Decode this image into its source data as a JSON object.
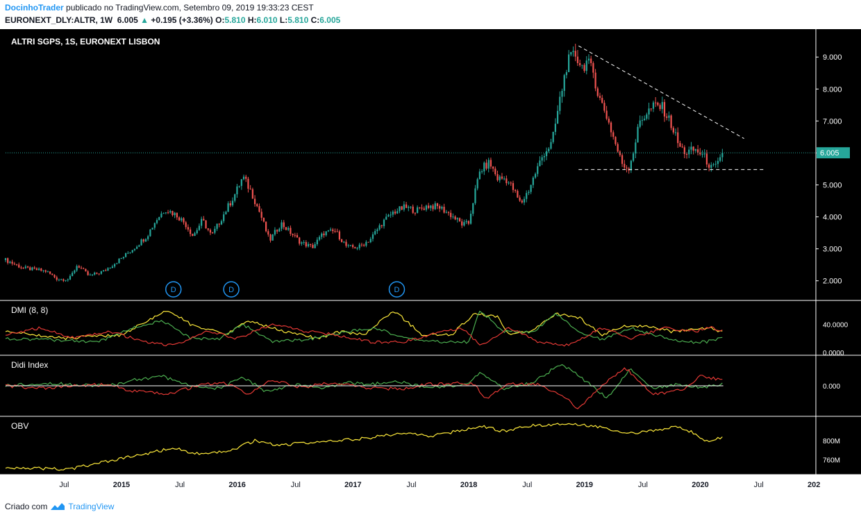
{
  "header": {
    "author": "DocinhoTrader",
    "published": "publicado no TradingView.com, Setembro 09, 2019 19:33:23 CEST",
    "symbol": "EURONEXT_DLY:ALTR, 1W",
    "last": "6.005",
    "change": "+0.195 (+3.36%)",
    "open_label": "O:",
    "open": "5.810",
    "high_label": "H:",
    "high": "6.010",
    "low_label": "L:",
    "low": "5.810",
    "close_label": "C:",
    "close": "6.005"
  },
  "footer": {
    "created_with": "Criado com",
    "brand": "TradingView"
  },
  "colors": {
    "up": "#26a69a",
    "down": "#ef5350",
    "yellow": "#ffeb3b",
    "green": "#4caf50",
    "red": "#e53935",
    "background": "#000000"
  },
  "chart_data": [
    {
      "type": "candlestick",
      "title": "ALTRI SGPS, 1S, EURONEXT LISBON",
      "x_tick_labels": [
        "Jul",
        "2015",
        "Jul",
        "2016",
        "Jul",
        "2017",
        "Jul",
        "2018",
        "Jul",
        "2019",
        "Jul",
        "2020",
        "Jul",
        "202"
      ],
      "y_ticks": [
        2.0,
        3.0,
        4.0,
        5.0,
        6.0,
        7.0,
        8.0,
        9.0
      ],
      "y_tick_labels": [
        "2.000",
        "3.000",
        "4.000",
        "5.000",
        "6.000",
        "7.000",
        "8.000",
        "9.000"
      ],
      "ylim": [
        1.45,
        9.7
      ],
      "last_price_label": "6.005",
      "last_price": 6.005,
      "dividend_markers": [
        {
          "label": "D",
          "date": "2015.45"
        },
        {
          "label": "D",
          "date": "2015.95"
        },
        {
          "label": "D",
          "date": "2017.38"
        }
      ],
      "anchors": [
        [
          2014.0,
          2.65
        ],
        [
          2014.15,
          2.4
        ],
        [
          2014.35,
          2.3
        ],
        [
          2014.45,
          2.05
        ],
        [
          2014.55,
          2.05
        ],
        [
          2014.62,
          2.5
        ],
        [
          2014.72,
          2.15
        ],
        [
          2014.85,
          2.3
        ],
        [
          2015.0,
          2.7
        ],
        [
          2015.1,
          3.0
        ],
        [
          2015.22,
          3.4
        ],
        [
          2015.3,
          3.9
        ],
        [
          2015.38,
          4.25
        ],
        [
          2015.48,
          4.05
        ],
        [
          2015.55,
          3.8
        ],
        [
          2015.62,
          3.4
        ],
        [
          2015.7,
          3.9
        ],
        [
          2015.78,
          3.4
        ],
        [
          2015.88,
          4.05
        ],
        [
          2015.98,
          4.7
        ],
        [
          2016.05,
          5.25
        ],
        [
          2016.12,
          4.8
        ],
        [
          2016.2,
          4.1
        ],
        [
          2016.28,
          3.25
        ],
        [
          2016.38,
          3.8
        ],
        [
          2016.45,
          3.55
        ],
        [
          2016.55,
          3.2
        ],
        [
          2016.65,
          3.05
        ],
        [
          2016.75,
          3.5
        ],
        [
          2016.85,
          3.55
        ],
        [
          2016.95,
          3.05
        ],
        [
          2017.05,
          3.05
        ],
        [
          2017.15,
          3.3
        ],
        [
          2017.25,
          3.8
        ],
        [
          2017.35,
          4.15
        ],
        [
          2017.45,
          4.3
        ],
        [
          2017.55,
          4.2
        ],
        [
          2017.65,
          4.35
        ],
        [
          2017.75,
          4.3
        ],
        [
          2017.85,
          4.05
        ],
        [
          2017.95,
          3.75
        ],
        [
          2018.0,
          3.8
        ],
        [
          2018.05,
          4.7
        ],
        [
          2018.1,
          5.45
        ],
        [
          2018.18,
          5.7
        ],
        [
          2018.25,
          5.2
        ],
        [
          2018.32,
          5.2
        ],
        [
          2018.38,
          4.9
        ],
        [
          2018.45,
          4.4
        ],
        [
          2018.52,
          4.85
        ],
        [
          2018.58,
          5.4
        ],
        [
          2018.65,
          6.0
        ],
        [
          2018.72,
          6.3
        ],
        [
          2018.78,
          7.5
        ],
        [
          2018.85,
          8.8
        ],
        [
          2018.92,
          9.1
        ],
        [
          2018.98,
          8.7
        ],
        [
          2019.02,
          8.85
        ],
        [
          2019.08,
          8.5
        ],
        [
          2019.12,
          7.8
        ],
        [
          2019.18,
          7.3
        ],
        [
          2019.25,
          6.5
        ],
        [
          2019.32,
          5.7
        ],
        [
          2019.38,
          5.5
        ],
        [
          2019.42,
          6.0
        ],
        [
          2019.48,
          7.0
        ],
        [
          2019.55,
          7.3
        ],
        [
          2019.62,
          7.5
        ],
        [
          2019.68,
          7.4
        ],
        [
          2019.75,
          6.9
        ],
        [
          2019.82,
          6.2
        ],
        [
          2019.88,
          6.0
        ],
        [
          2019.95,
          6.1
        ],
        [
          2020.0,
          6.0
        ],
        [
          2020.05,
          5.8
        ],
        [
          2020.1,
          5.5
        ],
        [
          2020.15,
          5.6
        ],
        [
          2020.2,
          6.0
        ]
      ],
      "annotations": [
        {
          "type": "trendline",
          "style": "dashed",
          "from": [
            2018.95,
            9.35
          ],
          "to": [
            2020.38,
            6.45
          ]
        },
        {
          "type": "horizontal_line",
          "style": "dashed",
          "from": [
            2018.95,
            5.48
          ],
          "to": [
            2020.55,
            5.48
          ]
        }
      ]
    },
    {
      "type": "line",
      "title": "DMI (8, 8)",
      "y_tick_labels": [
        "40.0000",
        "0.0000"
      ],
      "series": [
        {
          "color": "yellow",
          "anchors": [
            [
              2014.0,
              30
            ],
            [
              2014.5,
              20
            ],
            [
              2015.0,
              25
            ],
            [
              2015.4,
              60
            ],
            [
              2015.6,
              40
            ],
            [
              2015.9,
              25
            ],
            [
              2016.1,
              45
            ],
            [
              2016.4,
              30
            ],
            [
              2016.7,
              20
            ],
            [
              2016.9,
              30
            ],
            [
              2017.1,
              25
            ],
            [
              2017.35,
              60
            ],
            [
              2017.6,
              25
            ],
            [
              2017.85,
              25
            ],
            [
              2018.05,
              55
            ],
            [
              2018.25,
              50
            ],
            [
              2018.35,
              25
            ],
            [
              2018.55,
              30
            ],
            [
              2018.75,
              55
            ],
            [
              2018.95,
              50
            ],
            [
              2019.15,
              25
            ],
            [
              2019.35,
              38
            ],
            [
              2019.55,
              38
            ],
            [
              2019.75,
              30
            ],
            [
              2019.95,
              32
            ],
            [
              2020.1,
              35
            ],
            [
              2020.2,
              28
            ]
          ]
        },
        {
          "color": "green",
          "anchors": [
            [
              2014.0,
              20
            ],
            [
              2014.4,
              18
            ],
            [
              2014.8,
              15
            ],
            [
              2015.1,
              35
            ],
            [
              2015.35,
              45
            ],
            [
              2015.6,
              20
            ],
            [
              2015.85,
              20
            ],
            [
              2016.05,
              40
            ],
            [
              2016.3,
              15
            ],
            [
              2016.6,
              18
            ],
            [
              2016.9,
              28
            ],
            [
              2017.2,
              35
            ],
            [
              2017.45,
              20
            ],
            [
              2017.75,
              15
            ],
            [
              2018.0,
              15
            ],
            [
              2018.1,
              60
            ],
            [
              2018.3,
              30
            ],
            [
              2018.55,
              28
            ],
            [
              2018.75,
              55
            ],
            [
              2018.95,
              30
            ],
            [
              2019.15,
              18
            ],
            [
              2019.4,
              35
            ],
            [
              2019.6,
              25
            ],
            [
              2019.85,
              15
            ],
            [
              2020.05,
              15
            ],
            [
              2020.2,
              22
            ]
          ]
        },
        {
          "color": "red",
          "anchors": [
            [
              2014.0,
              25
            ],
            [
              2014.3,
              35
            ],
            [
              2014.6,
              20
            ],
            [
              2014.9,
              30
            ],
            [
              2015.2,
              15
            ],
            [
              2015.45,
              10
            ],
            [
              2015.75,
              30
            ],
            [
              2016.0,
              20
            ],
            [
              2016.3,
              40
            ],
            [
              2016.6,
              30
            ],
            [
              2016.85,
              25
            ],
            [
              2017.15,
              15
            ],
            [
              2017.45,
              15
            ],
            [
              2017.75,
              30
            ],
            [
              2017.95,
              35
            ],
            [
              2018.1,
              10
            ],
            [
              2018.35,
              35
            ],
            [
              2018.6,
              15
            ],
            [
              2018.85,
              10
            ],
            [
              2019.15,
              35
            ],
            [
              2019.4,
              20
            ],
            [
              2019.7,
              35
            ],
            [
              2019.95,
              30
            ],
            [
              2020.1,
              35
            ],
            [
              2020.2,
              30
            ]
          ]
        }
      ]
    },
    {
      "type": "line",
      "title": "Didi Index",
      "y_tick_labels": [
        "0.000"
      ],
      "series": [
        {
          "color": "green",
          "anchors": [
            [
              2014.0,
              0.0
            ],
            [
              2014.3,
              0.1
            ],
            [
              2014.6,
              0.05
            ],
            [
              2014.9,
              0.0
            ],
            [
              2015.1,
              0.2
            ],
            [
              2015.35,
              0.35
            ],
            [
              2015.6,
              0.0
            ],
            [
              2015.85,
              -0.1
            ],
            [
              2016.05,
              0.3
            ],
            [
              2016.25,
              -0.2
            ],
            [
              2016.5,
              0.05
            ],
            [
              2016.75,
              -0.1
            ],
            [
              2016.95,
              0.1
            ],
            [
              2017.15,
              0.05
            ],
            [
              2017.4,
              0.15
            ],
            [
              2017.6,
              -0.05
            ],
            [
              2017.85,
              0.0
            ],
            [
              2018.0,
              0.05
            ],
            [
              2018.1,
              0.5
            ],
            [
              2018.3,
              -0.1
            ],
            [
              2018.55,
              0.1
            ],
            [
              2018.8,
              0.8
            ],
            [
              2019.0,
              0.2
            ],
            [
              2019.2,
              -0.45
            ],
            [
              2019.4,
              0.6
            ],
            [
              2019.6,
              -0.1
            ],
            [
              2019.8,
              0.05
            ],
            [
              2020.0,
              -0.05
            ],
            [
              2020.2,
              0.05
            ]
          ]
        },
        {
          "color": "red",
          "anchors": [
            [
              2014.0,
              0.0
            ],
            [
              2014.3,
              -0.1
            ],
            [
              2014.6,
              0.0
            ],
            [
              2014.9,
              0.05
            ],
            [
              2015.1,
              -0.2
            ],
            [
              2015.4,
              -0.3
            ],
            [
              2015.7,
              0.05
            ],
            [
              2015.9,
              0.1
            ],
            [
              2016.1,
              -0.3
            ],
            [
              2016.3,
              0.2
            ],
            [
              2016.55,
              -0.05
            ],
            [
              2016.8,
              0.1
            ],
            [
              2017.0,
              0.0
            ],
            [
              2017.2,
              -0.1
            ],
            [
              2017.45,
              -0.1
            ],
            [
              2017.65,
              0.05
            ],
            [
              2017.9,
              0.1
            ],
            [
              2018.05,
              0.05
            ],
            [
              2018.15,
              -0.45
            ],
            [
              2018.35,
              0.1
            ],
            [
              2018.6,
              0.05
            ],
            [
              2018.8,
              -0.3
            ],
            [
              2018.95,
              -0.85
            ],
            [
              2019.15,
              0.0
            ],
            [
              2019.35,
              0.65
            ],
            [
              2019.6,
              -0.3
            ],
            [
              2019.85,
              -0.15
            ],
            [
              2020.0,
              0.35
            ],
            [
              2020.2,
              0.2
            ]
          ]
        }
      ],
      "zero_line": true
    },
    {
      "type": "line",
      "title": "OBV",
      "y_tick_labels": [
        "800M",
        "760M"
      ],
      "series": [
        {
          "color": "yellow",
          "anchors": [
            [
              2014.0,
              745
            ],
            [
              2014.3,
              742
            ],
            [
              2014.55,
              740
            ],
            [
              2014.7,
              748
            ],
            [
              2014.95,
              760
            ],
            [
              2015.2,
              772
            ],
            [
              2015.45,
              785
            ],
            [
              2015.7,
              770
            ],
            [
              2015.95,
              780
            ],
            [
              2016.15,
              800
            ],
            [
              2016.35,
              790
            ],
            [
              2016.55,
              795
            ],
            [
              2016.8,
              798
            ],
            [
              2017.1,
              805
            ],
            [
              2017.4,
              815
            ],
            [
              2017.7,
              810
            ],
            [
              2017.9,
              820
            ],
            [
              2018.1,
              830
            ],
            [
              2018.3,
              820
            ],
            [
              2018.5,
              830
            ],
            [
              2018.75,
              835
            ],
            [
              2018.95,
              835
            ],
            [
              2019.15,
              828
            ],
            [
              2019.4,
              815
            ],
            [
              2019.6,
              820
            ],
            [
              2019.8,
              830
            ],
            [
              2019.95,
              815
            ],
            [
              2020.05,
              800
            ],
            [
              2020.2,
              807
            ]
          ]
        }
      ]
    }
  ]
}
